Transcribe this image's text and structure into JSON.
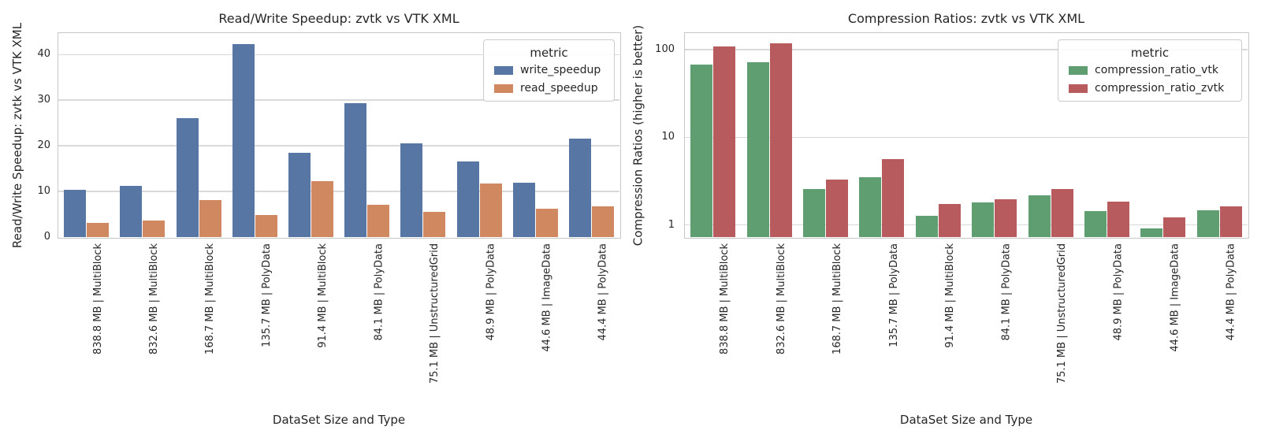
{
  "figure": {
    "background_color": "#ffffff",
    "text_color": "#262626",
    "grid_color": "#d9d9d9",
    "spine_color": "#c8c8c8"
  },
  "chart_data": [
    {
      "type": "bar",
      "title": "Read/Write Speedup: zvtk vs VTK XML",
      "xlabel": "DataSet Size and Type",
      "ylabel": "Read/Write Speedup: zvtk vs VTK XML",
      "yscale": "linear",
      "ylim": [
        0,
        44.7
      ],
      "yticks": [
        0,
        10,
        20,
        30,
        40
      ],
      "grid": true,
      "legend_title": "metric",
      "legend_position": "upper right",
      "categories": [
        "838.8 MB | MultiBlock",
        "832.6 MB | MultiBlock",
        "168.7 MB | MultiBlock",
        "135.7 MB | PolyData",
        "91.4 MB | MultiBlock",
        "84.1 MB | PolyData",
        "75.1 MB | UnstructuredGrid",
        "48.9 MB | PolyData",
        "44.6 MB | ImageData",
        "44.4 MB | PolyData"
      ],
      "series": [
        {
          "name": "write_speedup",
          "color": "#5876A4",
          "values": [
            10.4,
            11.3,
            26.0,
            42.3,
            18.5,
            29.3,
            20.5,
            16.6,
            11.9,
            21.6
          ]
        },
        {
          "name": "read_speedup",
          "color": "#CF8860",
          "values": [
            3.1,
            3.6,
            8.1,
            4.9,
            12.2,
            7.0,
            5.6,
            11.8,
            6.2,
            6.7
          ]
        }
      ]
    },
    {
      "type": "bar",
      "title": "Compression Ratios: zvtk vs VTK XML",
      "xlabel": "DataSet Size and Type",
      "ylabel": "Compression Ratios (higher is better)",
      "yscale": "log",
      "ylim": [
        0.73,
        154
      ],
      "yticks": [
        1,
        10,
        100
      ],
      "grid": true,
      "legend_title": "metric",
      "legend_position": "upper right",
      "categories": [
        "838.8 MB | MultiBlock",
        "832.6 MB | MultiBlock",
        "168.7 MB | MultiBlock",
        "135.7 MB | PolyData",
        "91.4 MB | MultiBlock",
        "84.1 MB | PolyData",
        "75.1 MB | UnstructuredGrid",
        "48.9 MB | PolyData",
        "44.6 MB | ImageData",
        "44.4 MB | PolyData"
      ],
      "series": [
        {
          "name": "compression_ratio_vtk",
          "color": "#5F9E70",
          "values": [
            68,
            71,
            2.6,
            3.5,
            1.27,
            1.82,
            2.16,
            1.43,
            0.92,
            1.46
          ]
        },
        {
          "name": "compression_ratio_zvtk",
          "color": "#B75B5F",
          "values": [
            108,
            118,
            3.3,
            5.6,
            1.75,
            1.97,
            2.6,
            1.86,
            1.23,
            1.62
          ]
        }
      ]
    }
  ]
}
